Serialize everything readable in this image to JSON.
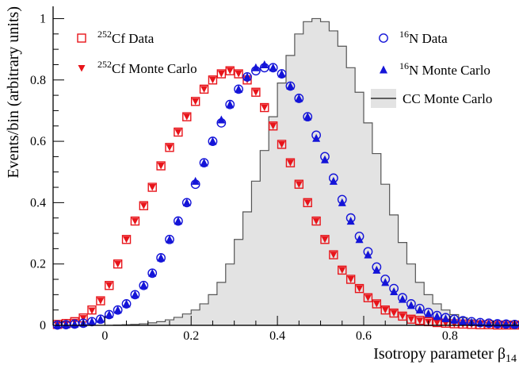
{
  "chart_data": {
    "type": "scatter",
    "title": "",
    "xlabel": "Isotropy parameter β14",
    "ylabel": "Events/bin (arbitrary units)",
    "xlim": [
      -0.12,
      0.96
    ],
    "ylim": [
      0,
      1.04
    ],
    "xticks": [
      "0",
      "0.2",
      "0.4",
      "0.6",
      "0.8"
    ],
    "yticks": [
      "0",
      "0.2",
      "0.4",
      "0.6",
      "0.8",
      "1"
    ],
    "grid": false,
    "legend": "top",
    "x": [
      -0.11,
      -0.09,
      -0.07,
      -0.05,
      -0.03,
      -0.01,
      0.01,
      0.03,
      0.05,
      0.07,
      0.09,
      0.11,
      0.13,
      0.15,
      0.17,
      0.19,
      0.21,
      0.23,
      0.25,
      0.27,
      0.29,
      0.31,
      0.33,
      0.35,
      0.37,
      0.39,
      0.41,
      0.43,
      0.45,
      0.47,
      0.49,
      0.51,
      0.53,
      0.55,
      0.57,
      0.59,
      0.61,
      0.63,
      0.65,
      0.67,
      0.69,
      0.71,
      0.73,
      0.75,
      0.77,
      0.79,
      0.81,
      0.83,
      0.85,
      0.87,
      0.89,
      0.91,
      0.93,
      0.95
    ],
    "series": [
      {
        "name": "Cf Data",
        "name_sup": "252",
        "marker": "open-square",
        "color": "#e8141a",
        "values": [
          0.003,
          0.006,
          0.012,
          0.024,
          0.05,
          0.08,
          0.13,
          0.2,
          0.28,
          0.34,
          0.39,
          0.45,
          0.52,
          0.58,
          0.63,
          0.68,
          0.73,
          0.77,
          0.8,
          0.82,
          0.83,
          0.82,
          0.8,
          0.76,
          0.71,
          0.65,
          0.59,
          0.53,
          0.46,
          0.4,
          0.34,
          0.28,
          0.23,
          0.18,
          0.15,
          0.12,
          0.09,
          0.07,
          0.05,
          0.04,
          0.03,
          0.02,
          0.016,
          0.012,
          0.009,
          0.007,
          0.005,
          0.004,
          0.003,
          0.002,
          0.002,
          0.001,
          0.001,
          0.001
        ]
      },
      {
        "name": "Cf Monte Carlo",
        "name_sup": "252",
        "marker": "down-triangle",
        "color": "#e8141a",
        "values": [
          0.002,
          0.005,
          0.011,
          0.023,
          0.048,
          0.08,
          0.13,
          0.2,
          0.28,
          0.34,
          0.39,
          0.45,
          0.52,
          0.58,
          0.63,
          0.68,
          0.73,
          0.77,
          0.8,
          0.82,
          0.83,
          0.82,
          0.8,
          0.76,
          0.71,
          0.65,
          0.59,
          0.53,
          0.46,
          0.4,
          0.34,
          0.28,
          0.23,
          0.18,
          0.15,
          0.12,
          0.09,
          0.07,
          0.05,
          0.04,
          0.03,
          0.02,
          0.015,
          0.011,
          0.008,
          0.006,
          0.004,
          0.003,
          0.002,
          0.002,
          0.001,
          0.001,
          0.001,
          0.001
        ]
      },
      {
        "name": "N Data",
        "name_sup": "16",
        "marker": "open-circle",
        "color": "#1414d8",
        "values": [
          0.001,
          0.002,
          0.004,
          0.007,
          0.012,
          0.02,
          0.035,
          0.05,
          0.07,
          0.1,
          0.13,
          0.17,
          0.22,
          0.28,
          0.34,
          0.4,
          0.46,
          0.53,
          0.6,
          0.66,
          0.72,
          0.77,
          0.81,
          0.83,
          0.84,
          0.84,
          0.82,
          0.78,
          0.74,
          0.68,
          0.62,
          0.55,
          0.48,
          0.41,
          0.35,
          0.29,
          0.24,
          0.19,
          0.15,
          0.12,
          0.09,
          0.07,
          0.055,
          0.042,
          0.032,
          0.025,
          0.02,
          0.015,
          0.012,
          0.009,
          0.007,
          0.005,
          0.004,
          0.003
        ]
      },
      {
        "name": "N Monte Carlo",
        "name_sup": "16",
        "marker": "up-triangle",
        "color": "#1414d8",
        "values": [
          0.001,
          0.002,
          0.004,
          0.007,
          0.012,
          0.02,
          0.035,
          0.05,
          0.07,
          0.1,
          0.13,
          0.17,
          0.22,
          0.28,
          0.34,
          0.4,
          0.47,
          0.53,
          0.6,
          0.67,
          0.72,
          0.77,
          0.81,
          0.84,
          0.85,
          0.84,
          0.82,
          0.78,
          0.74,
          0.68,
          0.61,
          0.54,
          0.47,
          0.4,
          0.34,
          0.28,
          0.23,
          0.18,
          0.14,
          0.11,
          0.085,
          0.065,
          0.05,
          0.038,
          0.029,
          0.022,
          0.017,
          0.013,
          0.01,
          0.008,
          0.006,
          0.005,
          0.004,
          0.003
        ]
      }
    ],
    "histogram": {
      "name": "CC Monte Carlo",
      "color": "#555555",
      "fill": "#e3e3e3",
      "edges": [
        -0.12,
        -0.1,
        -0.08,
        -0.06,
        -0.04,
        -0.02,
        0.0,
        0.02,
        0.04,
        0.06,
        0.08,
        0.1,
        0.12,
        0.14,
        0.16,
        0.18,
        0.2,
        0.22,
        0.24,
        0.26,
        0.28,
        0.3,
        0.32,
        0.34,
        0.36,
        0.38,
        0.4,
        0.42,
        0.44,
        0.46,
        0.48,
        0.5,
        0.52,
        0.54,
        0.56,
        0.58,
        0.6,
        0.62,
        0.64,
        0.66,
        0.68,
        0.7,
        0.72,
        0.74,
        0.76,
        0.78,
        0.8,
        0.82,
        0.84,
        0.86,
        0.88,
        0.9,
        0.92,
        0.94,
        0.96
      ],
      "values": [
        0,
        0,
        0,
        0,
        0,
        0,
        0,
        0.001,
        0.002,
        0.003,
        0.005,
        0.008,
        0.012,
        0.018,
        0.026,
        0.037,
        0.05,
        0.07,
        0.1,
        0.14,
        0.2,
        0.28,
        0.37,
        0.47,
        0.57,
        0.68,
        0.79,
        0.88,
        0.95,
        0.99,
        1.0,
        0.99,
        0.96,
        0.91,
        0.84,
        0.76,
        0.66,
        0.56,
        0.46,
        0.36,
        0.27,
        0.2,
        0.14,
        0.1,
        0.07,
        0.05,
        0.035,
        0.025,
        0.018,
        0.012,
        0.008,
        0.005,
        0.003,
        0.002
      ]
    }
  }
}
